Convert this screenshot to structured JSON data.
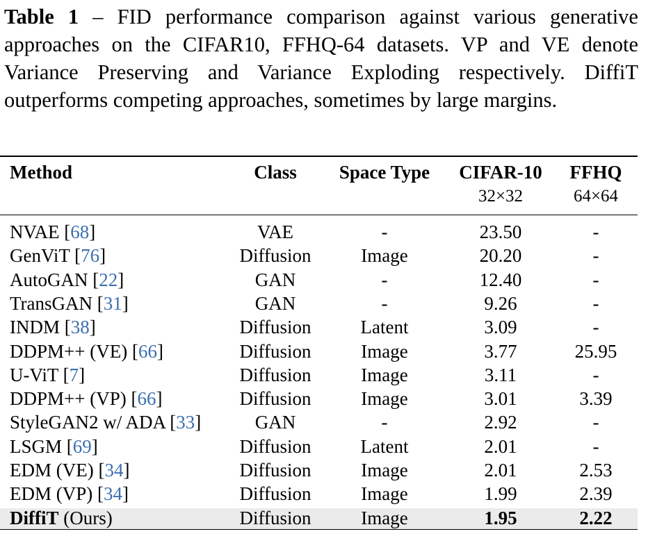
{
  "caption": {
    "label": "Table 1",
    "text": "– FID performance comparison against various generative approaches on the CIFAR10, FFHQ-64 datasets. VP and VE denote Variance Preserving and Variance Exploding respectively. DiffiT outperforms competing approaches, sometimes by large margins."
  },
  "table": {
    "headers": {
      "method": "Method",
      "class": "Class",
      "space_type": "Space Type",
      "cifar": "CIFAR-10",
      "cifar_res": "32×32",
      "ffhq": "FFHQ",
      "ffhq_res": "64×64"
    },
    "rows": [
      {
        "method": "NVAE",
        "ref": "68",
        "class": "VAE",
        "space": "-",
        "cifar": "23.50",
        "ffhq": "-"
      },
      {
        "method": "GenViT",
        "ref": "76",
        "class": "Diffusion",
        "space": "Image",
        "cifar": "20.20",
        "ffhq": "-"
      },
      {
        "method": "AutoGAN",
        "ref": "22",
        "class": "GAN",
        "space": "-",
        "cifar": "12.40",
        "ffhq": "-"
      },
      {
        "method": "TransGAN",
        "ref": "31",
        "class": "GAN",
        "space": "-",
        "cifar": "9.26",
        "ffhq": "-"
      },
      {
        "method": "INDM",
        "ref": "38",
        "class": "Diffusion",
        "space": "Latent",
        "cifar": "3.09",
        "ffhq": "-"
      },
      {
        "method": "DDPM++ (VE)",
        "ref": "66",
        "class": "Diffusion",
        "space": "Image",
        "cifar": "3.77",
        "ffhq": "25.95"
      },
      {
        "method": "U-ViT",
        "ref": "7",
        "class": "Diffusion",
        "space": "Image",
        "cifar": "3.11",
        "ffhq": "-"
      },
      {
        "method": "DDPM++ (VP)",
        "ref": "66",
        "class": "Diffusion",
        "space": "Image",
        "cifar": "3.01",
        "ffhq": "3.39"
      },
      {
        "method": "StyleGAN2 w/ ADA",
        "ref": "33",
        "class": "GAN",
        "space": "-",
        "cifar": "2.92",
        "ffhq": "-"
      },
      {
        "method": "LSGM",
        "ref": "69",
        "class": "Diffusion",
        "space": "Latent",
        "cifar": "2.01",
        "ffhq": "-"
      },
      {
        "method": "EDM (VE)",
        "ref": "34",
        "class": "Diffusion",
        "space": "Image",
        "cifar": "2.01",
        "ffhq": "2.53"
      },
      {
        "method": "EDM (VP)",
        "ref": "34",
        "class": "Diffusion",
        "space": "Image",
        "cifar": "1.99",
        "ffhq": "2.39"
      }
    ],
    "ours": {
      "method": "DiffiT",
      "suffix": "(Ours)",
      "class": "Diffusion",
      "space": "Image",
      "cifar": "1.95",
      "ffhq": "2.22"
    }
  }
}
